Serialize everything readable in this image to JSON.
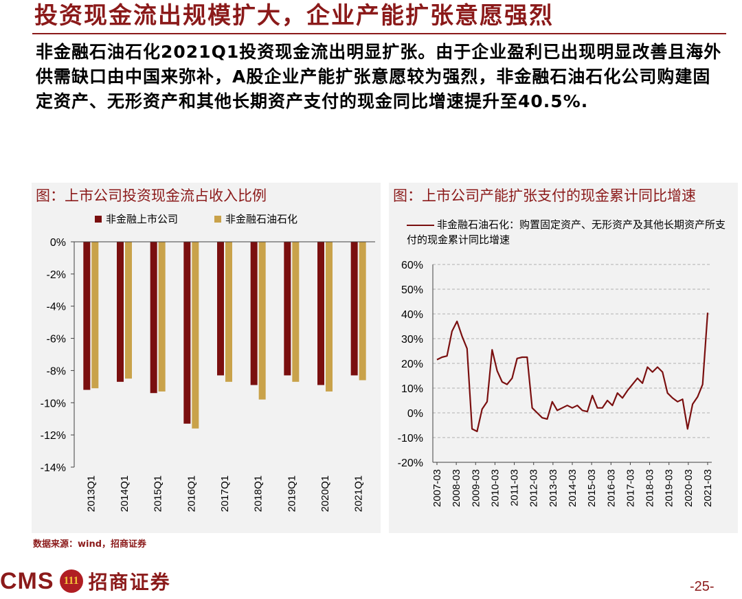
{
  "header": {
    "title": "投资现金流出规模扩大，企业产能扩张意愿强烈",
    "intro": "非金融石油石化2021Q1投资现金流出明显扩张。由于企业盈利已出现明显改善且海外供需缺口由中国来弥补，A股企业产能扩张意愿较为强烈，非金融石油石化公司购建固定资产、无形资产和其他长期资产支付的现金同比增速提升至40.5%."
  },
  "colors": {
    "brand": "#8b1a1a",
    "series_dark": "#7a0f0f",
    "series_gold": "#c9a24a",
    "panel_bg": "#f2f2f2"
  },
  "chart_left_title": "图：上市公司投资现金流占收入比例",
  "chart_right_title": "图：上市公司产能扩张支付的现金累计同比增速",
  "chart_data": [
    {
      "type": "bar",
      "categories": [
        "2013Q1",
        "2014Q1",
        "2015Q1",
        "2016Q1",
        "2017Q1",
        "2018Q1",
        "2019Q1",
        "2020Q1",
        "2021Q1"
      ],
      "series": [
        {
          "name": "非金融上市公司",
          "values": [
            -9.2,
            -8.7,
            -9.4,
            -11.3,
            -8.3,
            -8.9,
            -8.3,
            -8.9,
            -8.3
          ]
        },
        {
          "name": "非金融石油石化",
          "values": [
            -9.1,
            -8.5,
            -9.3,
            -11.6,
            -8.7,
            -9.8,
            -8.7,
            -9.3,
            -8.6
          ]
        }
      ],
      "ylim": [
        -14,
        0
      ],
      "yticks": [
        "0%",
        "-2%",
        "-4%",
        "-6%",
        "-8%",
        "-10%",
        "-12%",
        "-14%"
      ],
      "legend": "top",
      "grid": false
    },
    {
      "type": "line",
      "x_range": [
        "2007-03",
        "2021-03"
      ],
      "xticks": [
        "2007-03",
        "2008-03",
        "2009-03",
        "2010-03",
        "2011-03",
        "2012-03",
        "2013-03",
        "2014-03",
        "2015-03",
        "2016-03",
        "2017-03",
        "2018-03",
        "2019-03",
        "2020-03",
        "2021-03"
      ],
      "series": [
        {
          "name": "非金融石油石化：购置固定资产、无形资产及其他长期资产所支付的现金累计同比增速",
          "values": [
            21.5,
            22.5,
            23,
            33,
            37,
            31,
            26,
            -6.5,
            -7.5,
            1.5,
            4.5,
            25.5,
            17,
            12.5,
            11.5,
            14,
            22,
            22.5,
            22.5,
            2,
            0,
            -2,
            -2.5,
            4.5,
            1,
            2,
            3,
            2,
            3,
            1,
            0.5,
            7,
            2,
            2,
            5,
            3,
            8,
            6,
            9,
            11.5,
            14,
            12,
            18.5,
            16.5,
            18.5,
            16.5,
            8,
            6,
            4.5,
            5.5,
            -6.5,
            3.5,
            6.5,
            11.5,
            40.5
          ]
        }
      ],
      "ylim": [
        -20,
        60
      ],
      "yticks": [
        "60%",
        "50%",
        "40%",
        "30%",
        "20%",
        "10%",
        "0%",
        "-10%",
        "-20%"
      ],
      "legend": "top",
      "grid": "horizontal-dashed"
    }
  ],
  "source": "数据来源：wind，招商证券",
  "footer": {
    "logo_text": "CMS",
    "logo_cn": "招商证券",
    "page": "-25-",
    "mark": "111"
  }
}
